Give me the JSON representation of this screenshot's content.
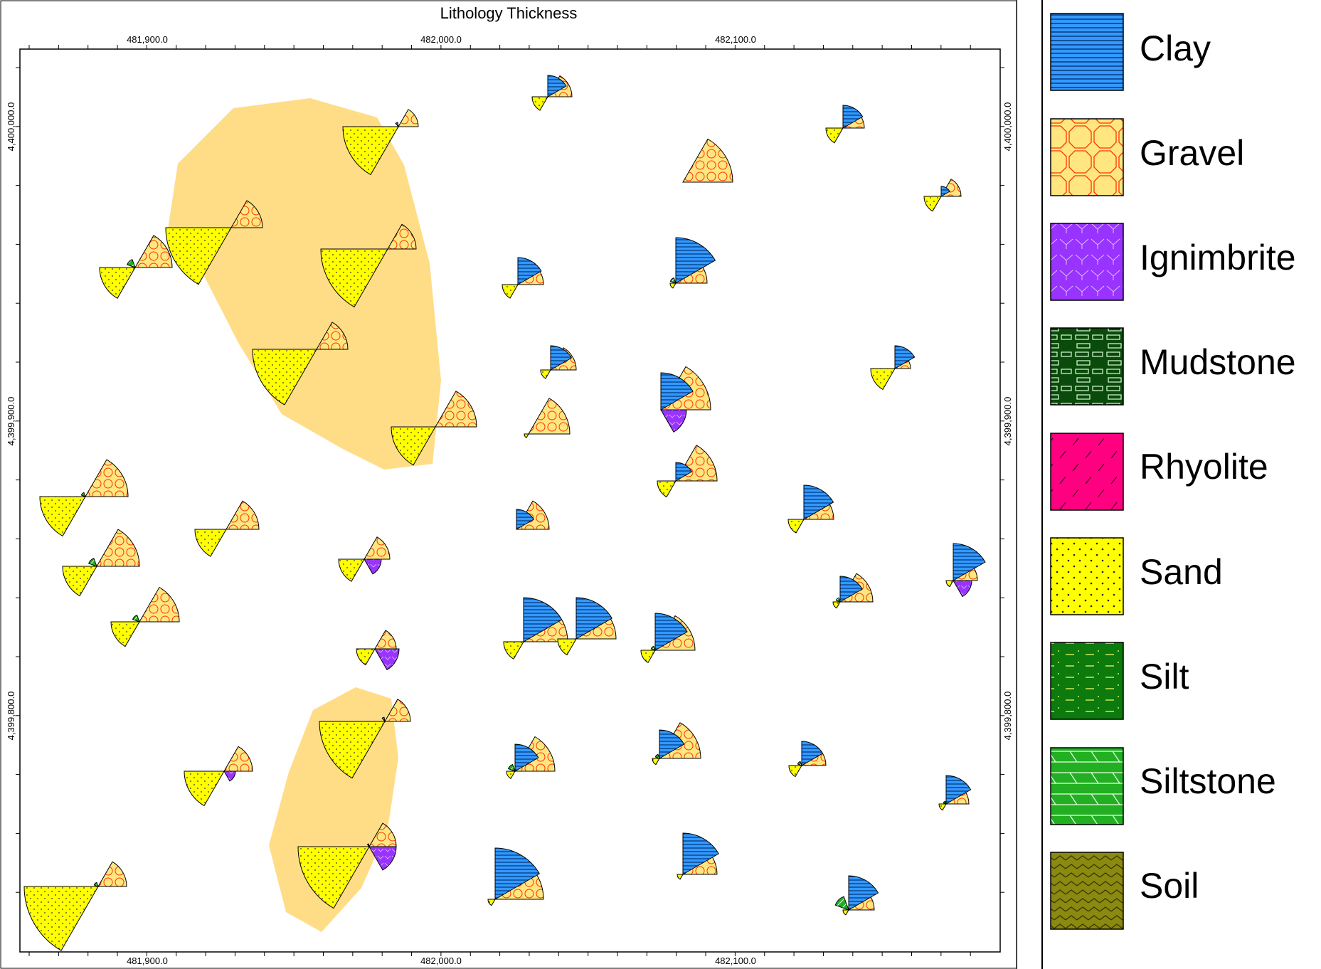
{
  "map": {
    "title": "Lithology Thickness",
    "x_ticks": [
      "481,900.0",
      "482,000.0",
      "482,100.0"
    ],
    "y_ticks": [
      "4,400,000.0",
      "4,399,900.0",
      "4,399,800.0"
    ]
  },
  "legend": {
    "items": [
      {
        "label": "Clay",
        "color": "#3399ff",
        "pattern": "horizontal-lines"
      },
      {
        "label": "Gravel",
        "color": "#ffe680",
        "pattern": "octagon-circles"
      },
      {
        "label": "Ignimbrite",
        "color": "#9933ff",
        "pattern": "chevrons"
      },
      {
        "label": "Mudstone",
        "color": "#0a4a0a",
        "pattern": "bricks"
      },
      {
        "label": "Rhyolite",
        "color": "#ff0080",
        "pattern": "slashes"
      },
      {
        "label": "Sand",
        "color": "#ffff00",
        "pattern": "dots"
      },
      {
        "label": "Silt",
        "color": "#0d7a0d",
        "pattern": "dashes"
      },
      {
        "label": "Siltstone",
        "color": "#22b022",
        "pattern": "diagonal-lines"
      },
      {
        "label": "Soil",
        "color": "#8a8a10",
        "pattern": "zigzag"
      }
    ]
  },
  "colors": {
    "highlight_area": "#ffd97a",
    "frame": "#000000"
  }
}
